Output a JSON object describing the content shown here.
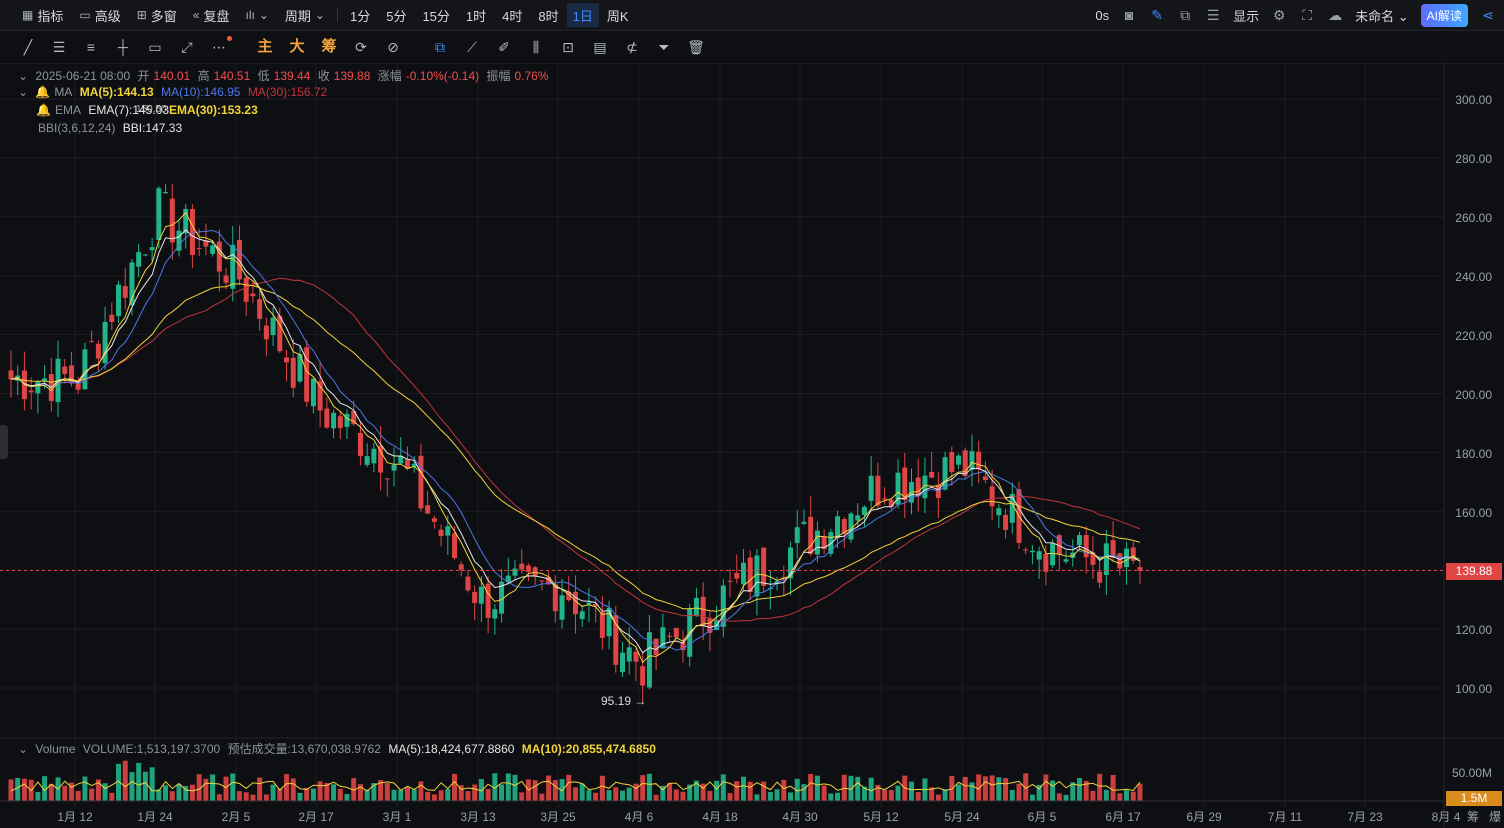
{
  "topbar": {
    "left": [
      {
        "icon": "indicator-icon",
        "label": "指标"
      },
      {
        "icon": "advanced-icon",
        "label": "高级"
      },
      {
        "icon": "multi-window-icon",
        "label": "多窗"
      },
      {
        "icon": "replay-icon",
        "label": "复盘"
      },
      {
        "icon": "chart-type-icon",
        "label": ""
      },
      {
        "icon": "",
        "label": "周期"
      }
    ],
    "periods": [
      "1分",
      "5分",
      "15分",
      "1时",
      "4时",
      "8时",
      "1日",
      "周K"
    ],
    "active_period": "1日",
    "right": {
      "timer": "0s",
      "display": "显示",
      "layout_name": "未命名",
      "ai_button": "AI解读"
    }
  },
  "toolbar2": {
    "overlay_main": "主",
    "overlay_big": "大",
    "overlay_chip": "筹"
  },
  "legend": {
    "date": "2025-06-21 08:00",
    "open_label": "开",
    "open": "140.01",
    "high_label": "高",
    "high": "140.51",
    "low_label": "低",
    "low": "139.44",
    "close_label": "收",
    "close": "139.88",
    "change_label": "涨幅",
    "change": "-0.10%(-0.14)",
    "amp_label": "振幅",
    "amp": "0.76%",
    "ma_name": "MA",
    "ma5": "MA(5):144.13",
    "ma10": "MA(10):146.95",
    "ma30": "MA(30):156.72",
    "ema_name": "EMA",
    "ema7": "EMA(7):145.03",
    "ema_overlap": "150.50",
    "ema30": "EMA(30):153.23",
    "bbi_name": "BBI(3,6,12,24)",
    "bbi": "BBI:147.33",
    "vol_name": "Volume",
    "vol_value": "VOLUME:1,513,197.3700",
    "vol_est": "预估成交量:13,670,038.9762",
    "vol_ma5": "MA(5):18,424,677.8860",
    "vol_ma10": "MA(10):20,855,474.6850"
  },
  "y_axis": [
    "300.00",
    "280.00",
    "260.00",
    "240.00",
    "220.00",
    "200.00",
    "180.00",
    "160.00",
    "140.00",
    "120.00",
    "100.00"
  ],
  "vol_axis": "50.00M",
  "current_price": "139.88",
  "current_volume": "1.5M",
  "low_marker": "95.19 →",
  "x_axis": [
    "1月 12",
    "1月 24",
    "2月 5",
    "2月 17",
    "3月 1",
    "3月 13",
    "3月 25",
    "4月 6",
    "4月 18",
    "4月 30",
    "5月 12",
    "5月 24",
    "6月 5",
    "6月 17",
    "6月 29",
    "7月 11",
    "7月 23",
    "8月 4"
  ],
  "corner_labels": [
    "筹",
    "爆"
  ],
  "colors": {
    "up": "#22b38a",
    "down": "#e04545",
    "ma5": "#f2d33a",
    "ma10": "#4a78e8",
    "ma30": "#c2343a",
    "ema": "#e8e8e8"
  },
  "chart_data": {
    "type": "candlestick",
    "ylim": [
      90,
      305
    ],
    "x": [
      "1月 12",
      "1月 24",
      "2月 5",
      "2月 17",
      "3月 1",
      "3月 13",
      "3月 25",
      "4月 6",
      "4月 18",
      "4月 30",
      "5月 12",
      "5月 24",
      "6月 5",
      "6月 17"
    ],
    "close": [
      205,
      262,
      240,
      195,
      176,
      130,
      135,
      108,
      131,
      150,
      170,
      175,
      148,
      140
    ],
    "low_marker_value": 95.19,
    "last_close": 139.88
  }
}
